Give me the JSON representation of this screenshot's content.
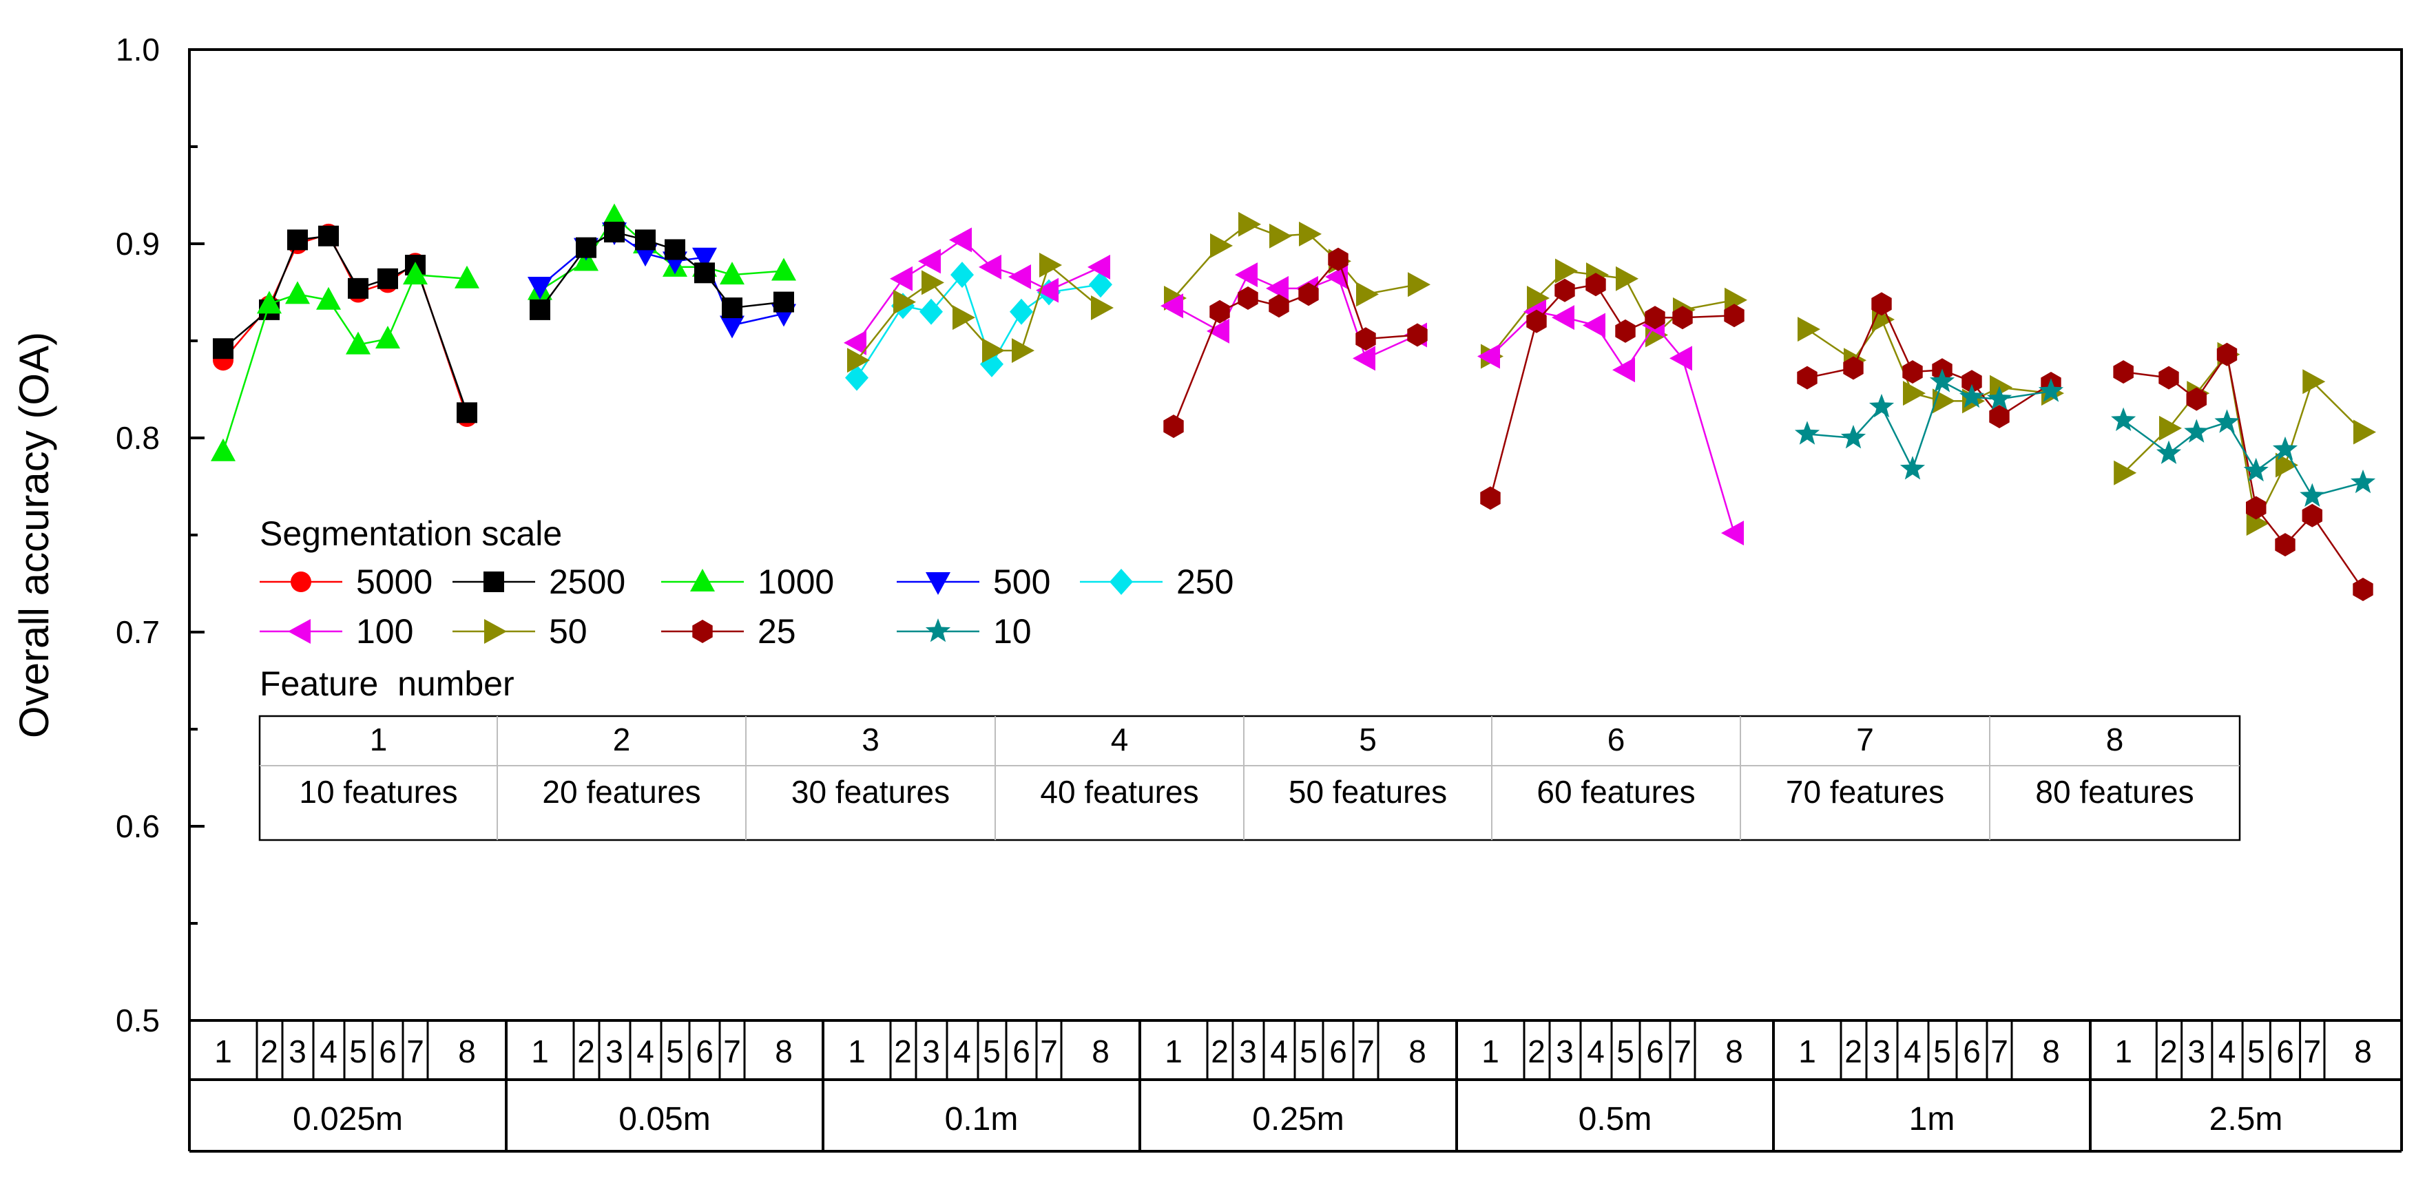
{
  "chart_data": {
    "type": "line",
    "ylabel": "Overall accuracy (OA)",
    "ylim": [
      0.5,
      1.0
    ],
    "yticks": [
      "0.5",
      "0.6",
      "0.7",
      "0.8",
      "0.9",
      "1.0"
    ],
    "group_labels": [
      "0.025m",
      "0.05m",
      "0.1m",
      "0.25m",
      "0.5m",
      "1m",
      "2.5m"
    ],
    "x_tick_labels": [
      "1",
      "2",
      "3",
      "4",
      "5",
      "6",
      "7",
      "8"
    ],
    "legend": {
      "title": "Segmentation scale",
      "entries": [
        "5000",
        "2500",
        "1000",
        "500",
        "250",
        "100",
        "50",
        "25",
        "10"
      ]
    },
    "feature_table": {
      "title": "Feature  number",
      "numbers": [
        "1",
        "2",
        "3",
        "4",
        "5",
        "6",
        "7",
        "8"
      ],
      "labels": [
        "10 features",
        "20 features",
        "30 features",
        "40 features",
        "50 features",
        "60 features",
        "70 features",
        "80 features"
      ]
    },
    "series": [
      {
        "name": "5000",
        "group": 0,
        "color": "#ff0000",
        "marker": "circle",
        "values": [
          0.84,
          0.868,
          0.9,
          0.905,
          0.875,
          0.88,
          0.89,
          0.811
        ]
      },
      {
        "name": "2500",
        "group": 0,
        "color": "#000000",
        "marker": "square",
        "values": [
          0.846,
          0.866,
          0.902,
          0.904,
          0.877,
          0.882,
          0.889,
          0.813
        ]
      },
      {
        "name": "1000",
        "group": 0,
        "color": "#00ee00",
        "marker": "triangle-up",
        "values": [
          0.793,
          0.869,
          0.874,
          0.871,
          0.848,
          0.851,
          0.884,
          0.882
        ]
      },
      {
        "name": "1000",
        "group": 1,
        "color": "#00ee00",
        "marker": "triangle-up",
        "values": [
          0.876,
          0.891,
          0.914,
          0.9,
          0.888,
          0.888,
          0.884,
          0.886
        ]
      },
      {
        "name": "500",
        "group": 1,
        "color": "#0000ff",
        "marker": "triangle-down",
        "values": [
          0.878,
          0.898,
          0.906,
          0.895,
          0.891,
          0.893,
          0.858,
          0.864
        ]
      },
      {
        "name": "2500",
        "group": 1,
        "color": "#000000",
        "marker": "square",
        "values": [
          0.866,
          0.898,
          0.906,
          0.902,
          0.897,
          0.885,
          0.867,
          0.87
        ]
      },
      {
        "name": "250",
        "group": 2,
        "color": "#00e5ee",
        "marker": "diamond",
        "values": [
          0.831,
          0.868,
          0.865,
          0.884,
          0.838,
          0.865,
          0.875,
          0.879
        ]
      },
      {
        "name": "100",
        "group": 2,
        "color": "#ee00ee",
        "marker": "triangle-left",
        "values": [
          0.849,
          0.882,
          0.891,
          0.902,
          0.888,
          0.883,
          0.876,
          0.888
        ]
      },
      {
        "name": "50",
        "group": 2,
        "color": "#8b8b00",
        "marker": "triangle-right",
        "values": [
          0.84,
          0.87,
          0.88,
          0.862,
          0.845,
          0.845,
          0.889,
          0.867
        ]
      },
      {
        "name": "50",
        "group": 3,
        "color": "#8b8b00",
        "marker": "triangle-right",
        "values": [
          0.872,
          0.899,
          0.91,
          0.904,
          0.905,
          0.891,
          0.874,
          0.879
        ]
      },
      {
        "name": "100",
        "group": 3,
        "color": "#ee00ee",
        "marker": "triangle-left",
        "values": [
          0.868,
          0.855,
          0.884,
          0.877,
          0.877,
          0.883,
          0.841,
          0.853
        ]
      },
      {
        "name": "25",
        "group": 3,
        "color": "#9b0000",
        "marker": "hexagon",
        "values": [
          0.806,
          0.865,
          0.872,
          0.868,
          0.874,
          0.892,
          0.851,
          0.853
        ]
      },
      {
        "name": "50",
        "group": 4,
        "color": "#8b8b00",
        "marker": "triangle-right",
        "values": [
          0.842,
          0.872,
          0.886,
          0.884,
          0.882,
          0.853,
          0.866,
          0.871
        ]
      },
      {
        "name": "100",
        "group": 4,
        "color": "#ee00ee",
        "marker": "triangle-left",
        "values": [
          0.842,
          0.865,
          0.862,
          0.858,
          0.835,
          0.858,
          0.841,
          0.751
        ]
      },
      {
        "name": "25",
        "group": 4,
        "color": "#9b0000",
        "marker": "hexagon",
        "values": [
          0.769,
          0.86,
          0.876,
          0.879,
          0.855,
          0.862,
          0.862,
          0.863
        ]
      },
      {
        "name": "50",
        "group": 5,
        "color": "#8b8b00",
        "marker": "triangle-right",
        "values": [
          0.856,
          0.84,
          0.861,
          0.823,
          0.819,
          0.819,
          0.826,
          0.823
        ]
      },
      {
        "name": "25",
        "group": 5,
        "color": "#9b0000",
        "marker": "hexagon",
        "values": [
          0.831,
          0.836,
          0.869,
          0.834,
          0.835,
          0.829,
          0.811,
          0.828
        ]
      },
      {
        "name": "10",
        "group": 5,
        "color": "#008b8b",
        "marker": "star",
        "values": [
          0.802,
          0.8,
          0.816,
          0.784,
          0.829,
          0.821,
          0.82,
          0.824
        ]
      },
      {
        "name": "50",
        "group": 6,
        "color": "#8b8b00",
        "marker": "triangle-right",
        "values": [
          0.782,
          0.805,
          0.823,
          0.843,
          0.756,
          0.786,
          0.829,
          0.803
        ]
      },
      {
        "name": "25",
        "group": 6,
        "color": "#9b0000",
        "marker": "hexagon",
        "values": [
          0.834,
          0.831,
          0.82,
          0.843,
          0.764,
          0.745,
          0.76,
          0.722
        ]
      },
      {
        "name": "10",
        "group": 6,
        "color": "#008b8b",
        "marker": "star",
        "values": [
          0.809,
          0.792,
          0.803,
          0.808,
          0.783,
          0.794,
          0.77,
          0.777
        ]
      }
    ]
  }
}
